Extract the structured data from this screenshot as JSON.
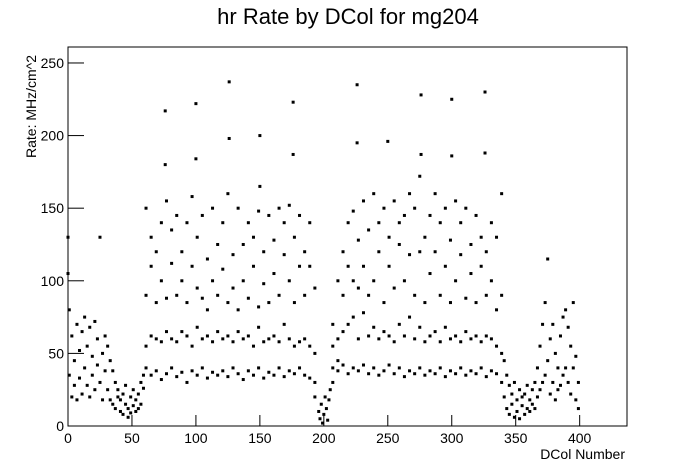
{
  "chart_data": {
    "type": "scatter",
    "title": "hr Rate by DCol for mg204",
    "x_label": "DCol Number",
    "y_label": "Rate: MHz/cm^2",
    "color": "#000000",
    "xlim": [
      0,
      437
    ],
    "ylim": [
      0,
      261
    ],
    "xticks": [
      0,
      50,
      100,
      150,
      200,
      250,
      300,
      350,
      400
    ],
    "yticks": [
      0,
      50,
      100,
      150,
      200,
      250
    ],
    "x": [
      0,
      0,
      1,
      1,
      3,
      3,
      5,
      5,
      7,
      7,
      9,
      9,
      11,
      11,
      13,
      13,
      15,
      15,
      17,
      17,
      19,
      19,
      21,
      21,
      23,
      23,
      25,
      25,
      27,
      27,
      29,
      29,
      31,
      31,
      33,
      33,
      35,
      35,
      37,
      37,
      39,
      39,
      41,
      41,
      43,
      43,
      45,
      45,
      47,
      47,
      49,
      49,
      51,
      51,
      53,
      53,
      55,
      55,
      57,
      57,
      59,
      59,
      61,
      61,
      61,
      61,
      65,
      65,
      65,
      65,
      69,
      69,
      69,
      69,
      73,
      73,
      73,
      73,
      77,
      77,
      77,
      77,
      81,
      81,
      81,
      81,
      85,
      85,
      85,
      85,
      89,
      89,
      89,
      89,
      93,
      93,
      93,
      93,
      97,
      97,
      97,
      97,
      101,
      101,
      101,
      101,
      105,
      105,
      105,
      105,
      109,
      109,
      109,
      109,
      113,
      113,
      113,
      113,
      117,
      117,
      117,
      117,
      121,
      121,
      121,
      121,
      125,
      125,
      125,
      125,
      129,
      129,
      129,
      129,
      133,
      133,
      133,
      133,
      137,
      137,
      137,
      137,
      141,
      141,
      141,
      141,
      145,
      145,
      145,
      145,
      149,
      149,
      149,
      149,
      153,
      153,
      153,
      153,
      157,
      157,
      157,
      157,
      161,
      161,
      161,
      161,
      165,
      165,
      165,
      165,
      169,
      169,
      169,
      169,
      173,
      173,
      173,
      173,
      177,
      177,
      177,
      177,
      181,
      181,
      181,
      181,
      185,
      185,
      185,
      185,
      189,
      189,
      189,
      189,
      193,
      193,
      193,
      193,
      76,
      76,
      100,
      100,
      126,
      126,
      150,
      150,
      176,
      176,
      196,
      197,
      198,
      199,
      200,
      201,
      202,
      203,
      204,
      205,
      207,
      207,
      207,
      207,
      211,
      211,
      211,
      211,
      215,
      215,
      215,
      215,
      219,
      219,
      219,
      219,
      223,
      223,
      223,
      223,
      227,
      227,
      227,
      227,
      231,
      231,
      231,
      231,
      235,
      235,
      235,
      235,
      239,
      239,
      239,
      239,
      243,
      243,
      243,
      243,
      247,
      247,
      247,
      247,
      251,
      251,
      251,
      251,
      255,
      255,
      255,
      255,
      259,
      259,
      259,
      259,
      263,
      263,
      263,
      263,
      267,
      267,
      267,
      267,
      271,
      271,
      271,
      271,
      275,
      275,
      275,
      275,
      279,
      279,
      279,
      279,
      283,
      283,
      283,
      283,
      287,
      287,
      287,
      287,
      291,
      291,
      291,
      291,
      295,
      295,
      295,
      295,
      299,
      299,
      299,
      299,
      303,
      303,
      303,
      303,
      307,
      307,
      307,
      307,
      311,
      311,
      311,
      311,
      315,
      315,
      315,
      315,
      319,
      319,
      319,
      319,
      323,
      323,
      323,
      323,
      327,
      327,
      327,
      327,
      331,
      331,
      331,
      331,
      335,
      335,
      335,
      335,
      339,
      339,
      339,
      339,
      226,
      226,
      250,
      276,
      276,
      300,
      300,
      326,
      326,
      341,
      341,
      343,
      343,
      345,
      345,
      347,
      347,
      349,
      349,
      351,
      351,
      353,
      353,
      355,
      355,
      357,
      357,
      359,
      359,
      361,
      361,
      363,
      363,
      365,
      365,
      367,
      367,
      369,
      369,
      371,
      371,
      373,
      373,
      375,
      375,
      377,
      377,
      379,
      379,
      381,
      381,
      383,
      383,
      385,
      385,
      387,
      387,
      389,
      389,
      391,
      391,
      393,
      393,
      395,
      395,
      397,
      397,
      399,
      399
    ],
    "values": [
      130,
      105,
      80,
      35,
      20,
      62,
      45,
      28,
      70,
      18,
      52,
      33,
      65,
      22,
      40,
      75,
      28,
      55,
      68,
      20,
      48,
      35,
      72,
      25,
      42,
      60,
      130,
      30,
      50,
      18,
      38,
      62,
      55,
      25,
      45,
      18,
      38,
      15,
      30,
      12,
      25,
      20,
      18,
      10,
      22,
      8,
      15,
      28,
      12,
      6,
      20,
      9,
      14,
      25,
      10,
      18,
      22,
      12,
      30,
      15,
      26,
      35,
      40,
      90,
      55,
      150,
      35,
      110,
      62,
      130,
      38,
      85,
      120,
      60,
      32,
      100,
      140,
      58,
      36,
      155,
      88,
      65,
      40,
      112,
      60,
      135,
      34,
      90,
      145,
      58,
      37,
      120,
      65,
      100,
      30,
      140,
      85,
      62,
      38,
      110,
      158,
      55,
      35,
      95,
      130,
      68,
      40,
      145,
      60,
      88,
      33,
      115,
      80,
      62,
      37,
      150,
      100,
      58,
      35,
      90,
      125,
      65,
      38,
      140,
      60,
      108,
      34,
      160,
      85,
      62,
      40,
      118,
      58,
      95,
      36,
      150,
      80,
      65,
      32,
      125,
      100,
      60,
      38,
      140,
      88,
      62,
      35,
      110,
      55,
      130,
      40,
      148,
      82,
      68,
      33,
      120,
      98,
      58,
      37,
      145,
      85,
      60,
      35,
      105,
      128,
      62,
      40,
      150,
      90,
      58,
      34,
      118,
      70,
      140,
      38,
      152,
      100,
      60,
      36,
      130,
      85,
      55,
      40,
      145,
      110,
      58,
      35,
      120,
      90,
      60,
      33,
      110,
      140,
      55,
      30,
      95,
      50,
      20,
      217,
      180,
      222,
      184,
      237,
      198,
      200,
      165,
      223,
      187,
      10,
      5,
      15,
      2,
      8,
      20,
      12,
      4,
      18,
      25,
      40,
      70,
      30,
      55,
      38,
      100,
      60,
      45,
      42,
      120,
      65,
      90,
      36,
      140,
      70,
      110,
      40,
      148,
      75,
      100,
      38,
      128,
      60,
      95,
      42,
      155,
      78,
      110,
      36,
      135,
      62,
      90,
      40,
      160,
      100,
      68,
      35,
      120,
      60,
      140,
      38,
      150,
      85,
      65,
      42,
      110,
      130,
      62,
      36,
      155,
      95,
      58,
      40,
      125,
      70,
      140,
      34,
      145,
      100,
      62,
      38,
      118,
      75,
      160,
      36,
      150,
      90,
      60,
      40,
      172,
      120,
      68,
      35,
      130,
      85,
      58,
      38,
      145,
      105,
      62,
      36,
      120,
      160,
      65,
      40,
      140,
      90,
      58,
      34,
      110,
      150,
      68,
      38,
      128,
      85,
      60,
      36,
      155,
      100,
      62,
      40,
      118,
      140,
      58,
      35,
      150,
      88,
      65,
      38,
      125,
      105,
      60,
      36,
      145,
      85,
      62,
      40,
      110,
      130,
      58,
      34,
      120,
      90,
      62,
      38,
      100,
      140,
      60,
      36,
      130,
      80,
      55,
      50,
      160,
      90,
      30,
      235,
      195,
      196,
      228,
      187,
      225,
      186,
      230,
      188,
      45,
      20,
      35,
      12,
      28,
      8,
      22,
      15,
      30,
      6,
      18,
      10,
      25,
      5,
      14,
      20,
      22,
      8,
      12,
      28,
      18,
      10,
      25,
      15,
      30,
      12,
      40,
      20,
      55,
      25,
      70,
      30,
      85,
      35,
      115,
      45,
      60,
      22,
      70,
      30,
      50,
      18,
      40,
      25,
      62,
      28,
      75,
      35,
      80,
      40,
      68,
      30,
      55,
      22,
      85,
      40,
      48,
      18,
      30,
      12
    ]
  }
}
